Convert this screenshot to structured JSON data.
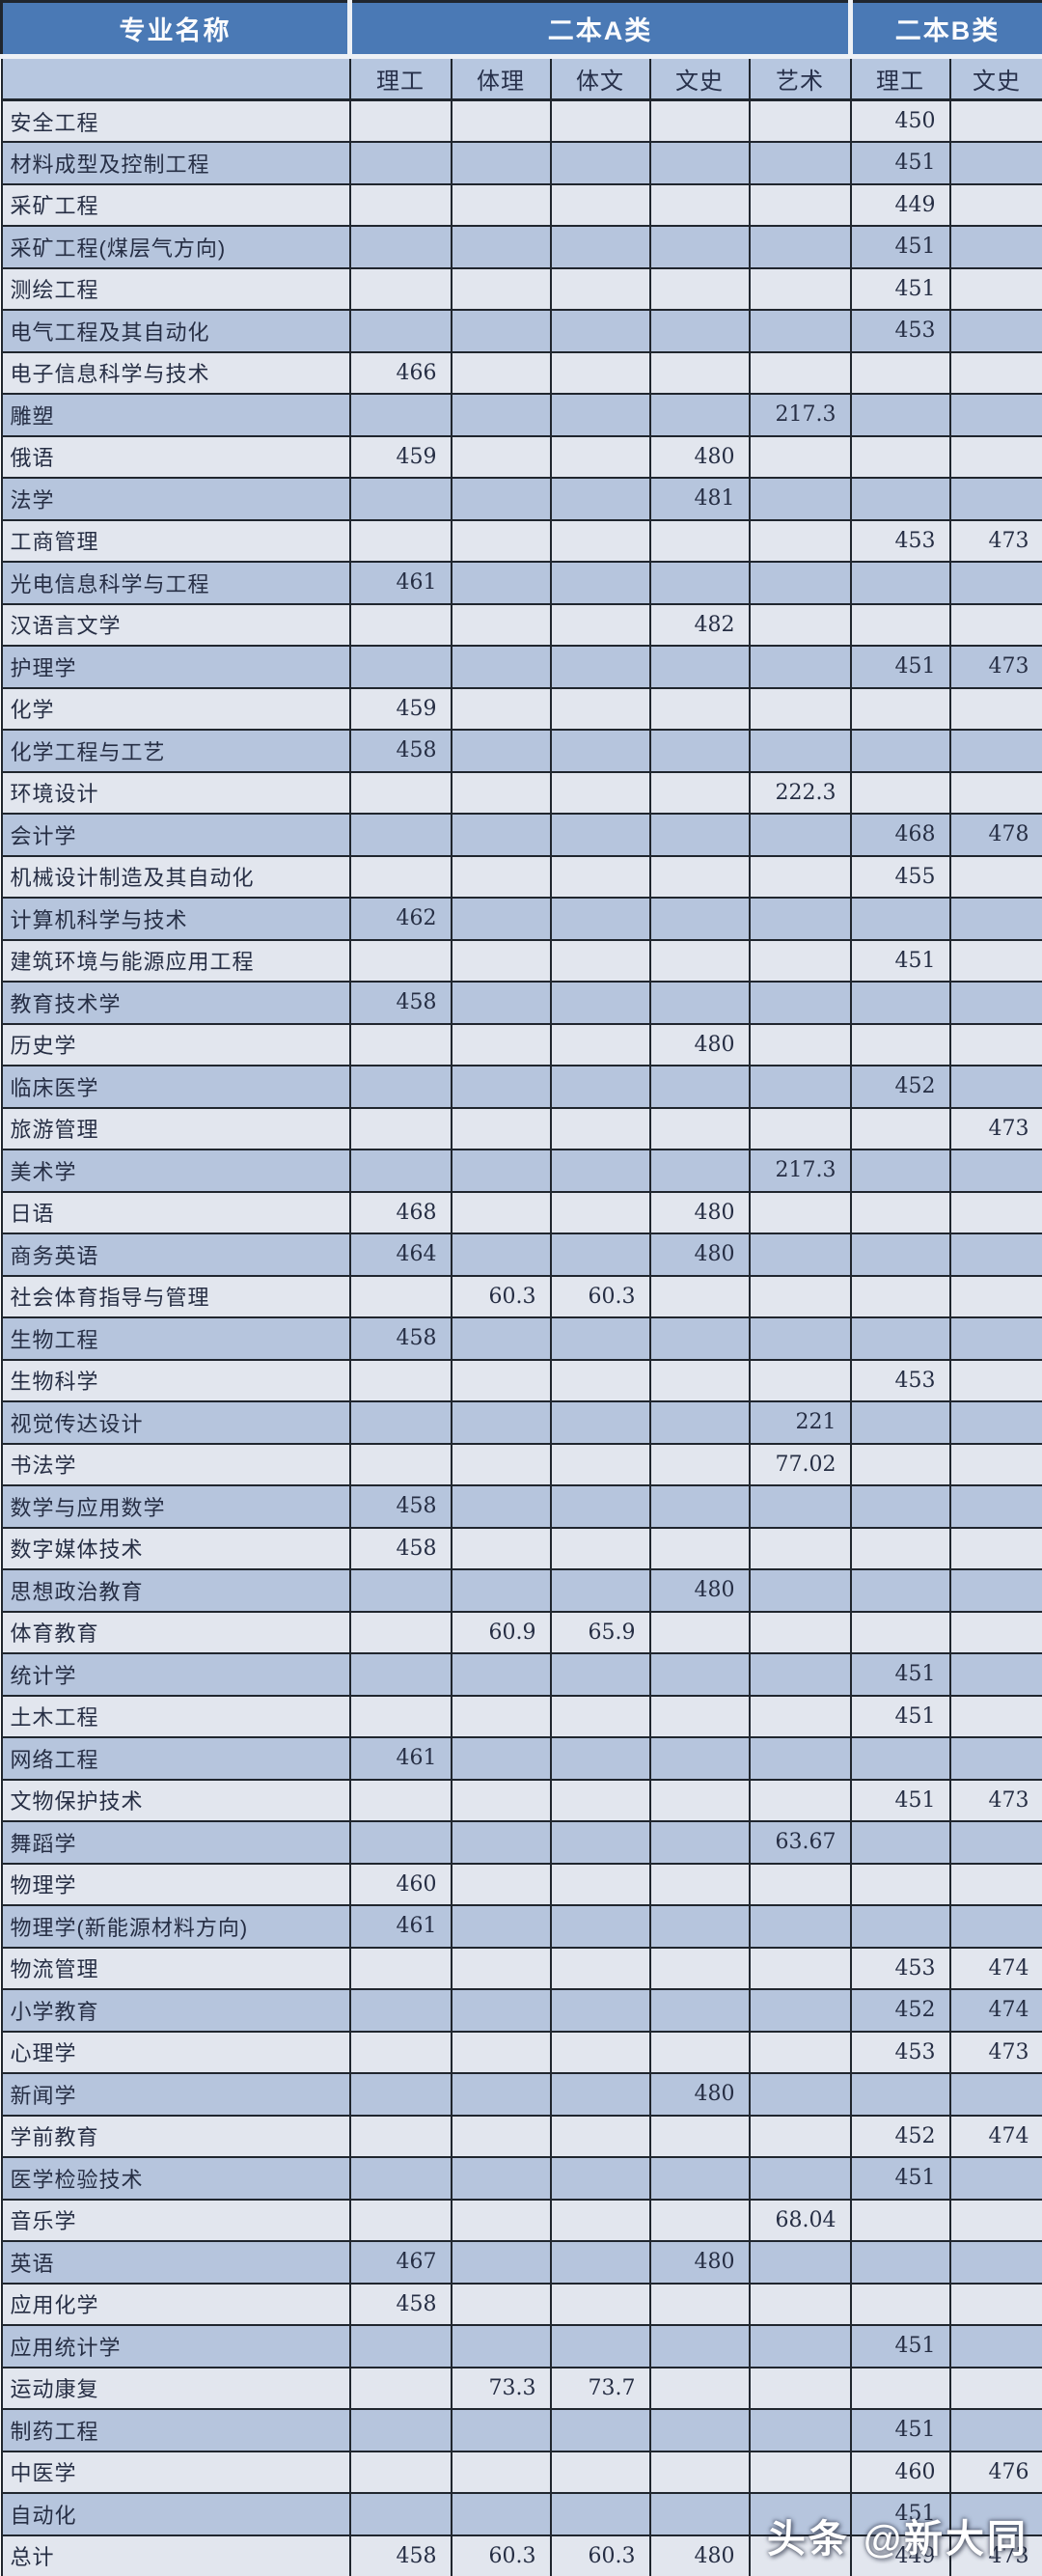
{
  "chart_data": {
    "type": "table",
    "header": {
      "major_col": "专业名称",
      "group_a": "二本A类",
      "group_b": "二本B类",
      "sub_columns": [
        "理工",
        "体理",
        "体文",
        "文史",
        "艺术",
        "理工",
        "文史"
      ]
    },
    "rows": [
      {
        "name": "安全工程",
        "values": [
          "",
          "",
          "",
          "",
          "",
          "450",
          ""
        ]
      },
      {
        "name": "材料成型及控制工程",
        "values": [
          "",
          "",
          "",
          "",
          "",
          "451",
          ""
        ]
      },
      {
        "name": "采矿工程",
        "values": [
          "",
          "",
          "",
          "",
          "",
          "449",
          ""
        ]
      },
      {
        "name": "采矿工程(煤层气方向)",
        "values": [
          "",
          "",
          "",
          "",
          "",
          "451",
          ""
        ]
      },
      {
        "name": "测绘工程",
        "values": [
          "",
          "",
          "",
          "",
          "",
          "451",
          ""
        ]
      },
      {
        "name": "电气工程及其自动化",
        "values": [
          "",
          "",
          "",
          "",
          "",
          "453",
          ""
        ]
      },
      {
        "name": "电子信息科学与技术",
        "values": [
          "466",
          "",
          "",
          "",
          "",
          "",
          ""
        ]
      },
      {
        "name": "雕塑",
        "values": [
          "",
          "",
          "",
          "",
          "217.3",
          "",
          ""
        ]
      },
      {
        "name": "俄语",
        "values": [
          "459",
          "",
          "",
          "480",
          "",
          "",
          ""
        ]
      },
      {
        "name": "法学",
        "values": [
          "",
          "",
          "",
          "481",
          "",
          "",
          ""
        ]
      },
      {
        "name": "工商管理",
        "values": [
          "",
          "",
          "",
          "",
          "",
          "453",
          "473"
        ]
      },
      {
        "name": "光电信息科学与工程",
        "values": [
          "461",
          "",
          "",
          "",
          "",
          "",
          ""
        ]
      },
      {
        "name": "汉语言文学",
        "values": [
          "",
          "",
          "",
          "482",
          "",
          "",
          ""
        ]
      },
      {
        "name": "护理学",
        "values": [
          "",
          "",
          "",
          "",
          "",
          "451",
          "473"
        ]
      },
      {
        "name": "化学",
        "values": [
          "459",
          "",
          "",
          "",
          "",
          "",
          ""
        ]
      },
      {
        "name": "化学工程与工艺",
        "values": [
          "458",
          "",
          "",
          "",
          "",
          "",
          ""
        ]
      },
      {
        "name": "环境设计",
        "values": [
          "",
          "",
          "",
          "",
          "222.3",
          "",
          ""
        ]
      },
      {
        "name": "会计学",
        "values": [
          "",
          "",
          "",
          "",
          "",
          "468",
          "478"
        ]
      },
      {
        "name": "机械设计制造及其自动化",
        "values": [
          "",
          "",
          "",
          "",
          "",
          "455",
          ""
        ]
      },
      {
        "name": "计算机科学与技术",
        "values": [
          "462",
          "",
          "",
          "",
          "",
          "",
          ""
        ]
      },
      {
        "name": "建筑环境与能源应用工程",
        "values": [
          "",
          "",
          "",
          "",
          "",
          "451",
          ""
        ]
      },
      {
        "name": "教育技术学",
        "values": [
          "458",
          "",
          "",
          "",
          "",
          "",
          ""
        ]
      },
      {
        "name": "历史学",
        "values": [
          "",
          "",
          "",
          "480",
          "",
          "",
          ""
        ]
      },
      {
        "name": "临床医学",
        "values": [
          "",
          "",
          "",
          "",
          "",
          "452",
          ""
        ]
      },
      {
        "name": "旅游管理",
        "values": [
          "",
          "",
          "",
          "",
          "",
          "",
          "473"
        ]
      },
      {
        "name": "美术学",
        "values": [
          "",
          "",
          "",
          "",
          "217.3",
          "",
          ""
        ]
      },
      {
        "name": "日语",
        "values": [
          "468",
          "",
          "",
          "480",
          "",
          "",
          ""
        ]
      },
      {
        "name": "商务英语",
        "values": [
          "464",
          "",
          "",
          "480",
          "",
          "",
          ""
        ]
      },
      {
        "name": "社会体育指导与管理",
        "values": [
          "",
          "60.3",
          "60.3",
          "",
          "",
          "",
          ""
        ]
      },
      {
        "name": "生物工程",
        "values": [
          "458",
          "",
          "",
          "",
          "",
          "",
          ""
        ]
      },
      {
        "name": "生物科学",
        "values": [
          "",
          "",
          "",
          "",
          "",
          "453",
          ""
        ]
      },
      {
        "name": "视觉传达设计",
        "values": [
          "",
          "",
          "",
          "",
          "221",
          "",
          ""
        ]
      },
      {
        "name": "书法学",
        "values": [
          "",
          "",
          "",
          "",
          "77.02",
          "",
          ""
        ]
      },
      {
        "name": "数学与应用数学",
        "values": [
          "458",
          "",
          "",
          "",
          "",
          "",
          ""
        ]
      },
      {
        "name": "数字媒体技术",
        "values": [
          "458",
          "",
          "",
          "",
          "",
          "",
          ""
        ]
      },
      {
        "name": "思想政治教育",
        "values": [
          "",
          "",
          "",
          "480",
          "",
          "",
          ""
        ]
      },
      {
        "name": "体育教育",
        "values": [
          "",
          "60.9",
          "65.9",
          "",
          "",
          "",
          ""
        ]
      },
      {
        "name": "统计学",
        "values": [
          "",
          "",
          "",
          "",
          "",
          "451",
          ""
        ]
      },
      {
        "name": "土木工程",
        "values": [
          "",
          "",
          "",
          "",
          "",
          "451",
          ""
        ]
      },
      {
        "name": "网络工程",
        "values": [
          "461",
          "",
          "",
          "",
          "",
          "",
          ""
        ]
      },
      {
        "name": "文物保护技术",
        "values": [
          "",
          "",
          "",
          "",
          "",
          "451",
          "473"
        ]
      },
      {
        "name": "舞蹈学",
        "values": [
          "",
          "",
          "",
          "",
          "63.67",
          "",
          ""
        ]
      },
      {
        "name": "物理学",
        "values": [
          "460",
          "",
          "",
          "",
          "",
          "",
          ""
        ]
      },
      {
        "name": "物理学(新能源材料方向)",
        "values": [
          "461",
          "",
          "",
          "",
          "",
          "",
          ""
        ]
      },
      {
        "name": "物流管理",
        "values": [
          "",
          "",
          "",
          "",
          "",
          "453",
          "474"
        ]
      },
      {
        "name": "小学教育",
        "values": [
          "",
          "",
          "",
          "",
          "",
          "452",
          "474"
        ]
      },
      {
        "name": "心理学",
        "values": [
          "",
          "",
          "",
          "",
          "",
          "453",
          "473"
        ]
      },
      {
        "name": "新闻学",
        "values": [
          "",
          "",
          "",
          "480",
          "",
          "",
          ""
        ]
      },
      {
        "name": "学前教育",
        "values": [
          "",
          "",
          "",
          "",
          "",
          "452",
          "474"
        ]
      },
      {
        "name": "医学检验技术",
        "values": [
          "",
          "",
          "",
          "",
          "",
          "451",
          ""
        ]
      },
      {
        "name": "音乐学",
        "values": [
          "",
          "",
          "",
          "",
          "68.04",
          "",
          ""
        ]
      },
      {
        "name": "英语",
        "values": [
          "467",
          "",
          "",
          "480",
          "",
          "",
          ""
        ]
      },
      {
        "name": "应用化学",
        "values": [
          "458",
          "",
          "",
          "",
          "",
          "",
          ""
        ]
      },
      {
        "name": "应用统计学",
        "values": [
          "",
          "",
          "",
          "",
          "",
          "451",
          ""
        ]
      },
      {
        "name": "运动康复",
        "values": [
          "",
          "73.3",
          "73.7",
          "",
          "",
          "",
          ""
        ]
      },
      {
        "name": "制药工程",
        "values": [
          "",
          "",
          "",
          "",
          "",
          "451",
          ""
        ]
      },
      {
        "name": "中医学",
        "values": [
          "",
          "",
          "",
          "",
          "",
          "460",
          "476"
        ]
      },
      {
        "name": "自动化",
        "values": [
          "",
          "",
          "",
          "",
          "",
          "451",
          ""
        ]
      },
      {
        "name": "总计",
        "values": [
          "458",
          "60.3",
          "60.3",
          "480",
          "",
          "449",
          "473"
        ]
      }
    ],
    "layout_hints": {
      "group_a_spans_columns": 5,
      "group_b_spans_columns": 2,
      "row_striping": "odd rows light, even rows dark"
    }
  },
  "watermark": "头条 @新大同",
  "colors": {
    "header_blue": "#4a79b5",
    "sub_header_blue": "#b7c7e0",
    "row_light": "#e2e6ee",
    "row_dark": "#b6c5dd",
    "border": "#20262e",
    "header_text": "#fbfcfe",
    "cell_text": "#262e44",
    "watermark_text": "#ffffff"
  }
}
